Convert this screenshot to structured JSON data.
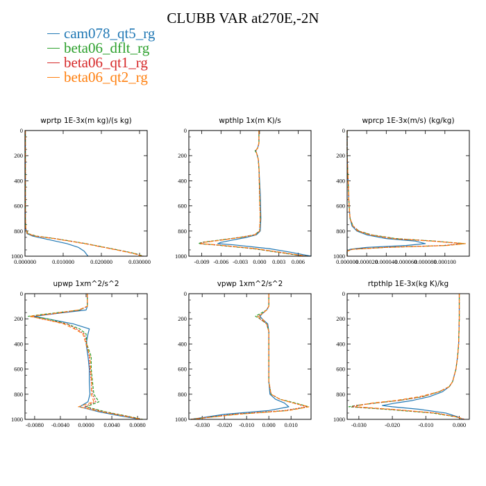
{
  "title": "CLUBB VAR at270E,-2N",
  "legend": [
    {
      "label": "cam078_qt5_rg",
      "color": "#1f77b4"
    },
    {
      "label": "beta06_dflt_rg",
      "color": "#2ca02c"
    },
    {
      "label": "beta06_qt1_rg",
      "color": "#d62728"
    },
    {
      "label": "beta06_qt2_rg",
      "color": "#ff7f0e"
    }
  ],
  "chart_data": [
    {
      "type": "line",
      "title": "wprtp  1E-3x(m kg)/(s kg)",
      "xlim": [
        0.0,
        0.032
      ],
      "ylim": [
        1000,
        0
      ],
      "xticks": [
        0.0,
        0.01,
        0.02,
        0.03
      ],
      "xtick_labels": [
        "0.000000",
        "0.010000",
        "0.020000",
        "0.030000"
      ],
      "yticks": [
        0,
        200,
        400,
        600,
        800,
        1000
      ],
      "y": [
        0,
        100,
        200,
        300,
        400,
        500,
        600,
        700,
        780,
        820,
        840,
        860,
        880,
        900,
        930,
        960,
        980,
        1000
      ],
      "series": [
        {
          "name": "cam078_qt5_rg",
          "values": [
            0.0001,
            0.0001,
            0.0001,
            0.0001,
            0.0001,
            0.0001,
            0.0001,
            0.0001,
            0.0002,
            0.0005,
            0.002,
            0.005,
            0.008,
            0.011,
            0.014,
            0.0155,
            0.016,
            0.0165
          ]
        },
        {
          "name": "beta06_dflt_rg",
          "values": [
            0.0001,
            0.0001,
            0.0001,
            0.0001,
            0.0001,
            0.0001,
            0.0001,
            0.0001,
            0.0002,
            0.0008,
            0.003,
            0.008,
            0.012,
            0.016,
            0.021,
            0.026,
            0.029,
            0.031
          ]
        },
        {
          "name": "beta06_qt1_rg",
          "values": [
            0.0001,
            0.0001,
            0.0001,
            0.0001,
            0.0001,
            0.0001,
            0.0001,
            0.0001,
            0.0002,
            0.0007,
            0.0028,
            0.0078,
            0.0118,
            0.0158,
            0.0208,
            0.0258,
            0.0288,
            0.0308
          ]
        },
        {
          "name": "beta06_qt2_rg",
          "values": [
            0.0001,
            0.0001,
            0.0001,
            0.0001,
            0.0001,
            0.0001,
            0.0001,
            0.0001,
            0.0002,
            0.0006,
            0.0026,
            0.0076,
            0.0116,
            0.0156,
            0.0206,
            0.0256,
            0.0286,
            0.0306
          ]
        }
      ]
    },
    {
      "type": "line",
      "title": "wpthlp  1x(m K)/s",
      "xlim": [
        -0.011,
        0.008
      ],
      "ylim": [
        1000,
        0
      ],
      "xticks": [
        -0.009,
        -0.006,
        -0.003,
        0.0,
        0.003,
        0.006
      ],
      "xtick_labels": [
        "-0.009",
        "-0.006",
        "-0.003",
        "0.000",
        "0.003",
        "0.006"
      ],
      "yticks": [
        0,
        200,
        400,
        600,
        800,
        1000
      ],
      "y": [
        0,
        100,
        140,
        160,
        190,
        230,
        300,
        500,
        700,
        800,
        830,
        850,
        870,
        890,
        900,
        910,
        940,
        970,
        1000
      ],
      "series": [
        {
          "name": "cam078_qt5_rg",
          "values": [
            -0.0001,
            -0.0001,
            -0.0003,
            -0.0006,
            -0.0004,
            -0.0002,
            -0.0001,
            0.0001,
            0.0002,
            0.0001,
            -0.0005,
            -0.002,
            -0.004,
            -0.006,
            -0.0065,
            -0.004,
            0.0015,
            0.005,
            0.008
          ]
        },
        {
          "name": "beta06_dflt_rg",
          "values": [
            -0.0001,
            -0.0001,
            -0.0003,
            -0.0007,
            -0.0004,
            -0.0002,
            -0.0001,
            0.0,
            0.0001,
            0.0,
            -0.0008,
            -0.003,
            -0.006,
            -0.009,
            -0.0095,
            -0.007,
            -0.001,
            0.003,
            0.007
          ]
        },
        {
          "name": "beta06_qt1_rg",
          "values": [
            -0.0001,
            -0.0001,
            -0.0003,
            -0.0006,
            -0.0004,
            -0.0002,
            -0.0001,
            0.0,
            0.0001,
            0.0,
            -0.0008,
            -0.003,
            -0.0058,
            -0.0088,
            -0.0093,
            -0.0068,
            -0.0008,
            0.0032,
            0.0072
          ]
        },
        {
          "name": "beta06_qt2_rg",
          "values": [
            -0.0001,
            -0.0001,
            -0.0003,
            -0.0006,
            -0.0004,
            -0.0002,
            -0.0001,
            0.0,
            0.0001,
            0.0,
            -0.0007,
            -0.0028,
            -0.0056,
            -0.0086,
            -0.0091,
            -0.0066,
            -0.0006,
            0.0034,
            0.0074
          ]
        }
      ]
    },
    {
      "type": "line",
      "title": "wprcp  1E-3x(m/s) (kg/kg)",
      "xlim": [
        0.0,
        0.000125
      ],
      "ylim": [
        1000,
        0
      ],
      "xticks": [
        0.0,
        2e-05,
        4e-05,
        6e-05,
        8e-05,
        0.0001
      ],
      "xtick_labels": [
        "0.000000",
        "0.000020",
        "0.000040",
        "0.000060",
        "0.000080",
        "0.000100"
      ],
      "yticks": [
        0,
        200,
        400,
        600,
        800,
        1000
      ],
      "y": [
        0,
        200,
        400,
        600,
        700,
        760,
        800,
        830,
        860,
        880,
        900,
        915,
        930,
        945,
        960,
        980,
        1000
      ],
      "series": [
        {
          "name": "cam078_qt5_rg",
          "values": [
            0.0,
            0.0,
            1e-06,
            2e-06,
            3e-06,
            5e-06,
            1e-05,
            2e-05,
            4e-05,
            7e-05,
            8e-05,
            6e-05,
            2e-05,
            3e-06,
            0.0,
            0.0,
            0.0
          ]
        },
        {
          "name": "beta06_dflt_rg",
          "values": [
            0.0,
            0.0,
            1e-06,
            2e-06,
            3e-06,
            6e-06,
            1.2e-05,
            2.5e-05,
            5e-05,
            9e-05,
            0.00012,
            0.0001,
            4e-05,
            5e-06,
            0.0,
            0.0,
            0.0
          ]
        },
        {
          "name": "beta06_qt1_rg",
          "values": [
            0.0,
            0.0,
            1e-06,
            2e-06,
            3e-06,
            6e-06,
            1.2e-05,
            2.4e-05,
            4.8e-05,
            8.8e-05,
            0.000118,
            9.8e-05,
            3.8e-05,
            5e-06,
            0.0,
            0.0,
            0.0
          ]
        },
        {
          "name": "beta06_qt2_rg",
          "values": [
            0.0,
            0.0,
            1e-06,
            2e-06,
            3e-06,
            6e-06,
            1.1e-05,
            2.3e-05,
            4.6e-05,
            8.6e-05,
            0.000121,
            0.000102,
            4e-05,
            6e-06,
            0.0,
            0.0,
            0.0
          ]
        }
      ]
    },
    {
      "type": "line",
      "title": "upwp  1xm^2/s^2",
      "xlim": [
        -0.0095,
        0.0095
      ],
      "ylim": [
        1000,
        0
      ],
      "xticks": [
        -0.008,
        -0.004,
        0.0,
        0.004,
        0.008
      ],
      "xtick_labels": [
        "-0.0080",
        "-0.0040",
        "0.0000",
        "0.0040",
        "0.0080"
      ],
      "yticks": [
        0,
        200,
        400,
        600,
        800,
        1000
      ],
      "y": [
        0,
        100,
        130,
        160,
        180,
        200,
        240,
        280,
        320,
        400,
        500,
        600,
        700,
        800,
        860,
        900,
        940,
        970,
        1000
      ],
      "series": [
        {
          "name": "cam078_qt5_rg",
          "values": [
            0.0002,
            0.0002,
            0.0,
            -0.005,
            -0.008,
            -0.006,
            -0.002,
            0.0005,
            0.0003,
            0.0,
            0.0003,
            0.0005,
            0.0005,
            0.0006,
            0.0003,
            -0.001,
            0.002,
            0.005,
            0.0085
          ]
        },
        {
          "name": "beta06_dflt_rg",
          "values": [
            0.0002,
            0.0002,
            -0.001,
            -0.006,
            -0.009,
            -0.006,
            -0.003,
            -0.001,
            0.0,
            0.0001,
            0.0008,
            0.0008,
            0.001,
            0.0012,
            0.002,
            0.0,
            0.003,
            0.006,
            0.0088
          ]
        },
        {
          "name": "beta06_qt1_rg",
          "values": [
            0.0002,
            0.0002,
            -0.001,
            -0.005,
            -0.0085,
            -0.007,
            -0.003,
            -0.0015,
            -0.0003,
            0.0001,
            0.0005,
            0.0006,
            0.0008,
            0.001,
            0.0015,
            -0.0003,
            0.0027,
            0.0058,
            0.0086
          ]
        },
        {
          "name": "beta06_qt2_rg",
          "values": [
            0.0002,
            0.0002,
            -0.0012,
            -0.0055,
            -0.0088,
            -0.0068,
            -0.0035,
            -0.0018,
            -0.0005,
            0.0,
            0.0006,
            0.0007,
            0.0009,
            0.0008,
            0.0012,
            -0.0012,
            0.0025,
            0.0055,
            0.0087
          ]
        }
      ]
    },
    {
      "type": "line",
      "title": "vpwp  1xm^2/s^2",
      "xlim": [
        -0.036,
        0.019
      ],
      "ylim": [
        1000,
        0
      ],
      "xticks": [
        -0.03,
        -0.02,
        -0.01,
        0.0,
        0.01
      ],
      "xtick_labels": [
        "-0.030",
        "-0.020",
        "-0.010",
        "0.000",
        "0.010"
      ],
      "yticks": [
        0,
        200,
        400,
        600,
        800,
        1000
      ],
      "y": [
        0,
        100,
        130,
        160,
        180,
        200,
        240,
        300,
        500,
        700,
        800,
        840,
        870,
        900,
        930,
        960,
        1000
      ],
      "series": [
        {
          "name": "cam078_qt5_rg",
          "values": [
            0.0,
            0.0,
            -0.001,
            -0.003,
            -0.004,
            -0.003,
            -0.0005,
            0.0,
            0.0,
            0.0,
            0.0005,
            0.003,
            0.007,
            0.009,
            0.0,
            -0.02,
            -0.035
          ]
        },
        {
          "name": "beta06_dflt_rg",
          "values": [
            0.0,
            0.0,
            -0.001,
            -0.004,
            -0.006,
            -0.004,
            -0.001,
            0.0,
            0.0,
            0.0,
            0.001,
            0.005,
            0.012,
            0.018,
            0.008,
            -0.015,
            -0.035
          ]
        },
        {
          "name": "beta06_qt1_rg",
          "values": [
            0.0,
            0.0,
            -0.001,
            -0.003,
            -0.005,
            -0.004,
            -0.001,
            0.0,
            0.0,
            0.0,
            0.001,
            0.005,
            0.011,
            0.017,
            0.007,
            -0.016,
            -0.035
          ]
        },
        {
          "name": "beta06_qt2_rg",
          "values": [
            0.0,
            0.0,
            -0.001,
            -0.003,
            -0.005,
            -0.003,
            -0.001,
            0.0,
            0.0,
            0.0,
            0.001,
            0.005,
            0.011,
            0.018,
            0.009,
            -0.014,
            -0.035
          ]
        }
      ]
    },
    {
      "type": "line",
      "title": "rtpthlp  1E-3x(kg K)/kg",
      "xlim": [
        -0.0335,
        0.003
      ],
      "ylim": [
        1000,
        0
      ],
      "xticks": [
        -0.03,
        -0.02,
        -0.01,
        0.0
      ],
      "xtick_labels": [
        "-0.030",
        "-0.020",
        "-0.010",
        "0.000"
      ],
      "yticks": [
        0,
        200,
        400,
        600,
        800,
        1000
      ],
      "y": [
        0,
        200,
        400,
        500,
        600,
        650,
        700,
        740,
        780,
        820,
        850,
        870,
        890,
        900,
        920,
        950,
        980,
        1000
      ],
      "series": [
        {
          "name": "cam078_qt5_rg",
          "values": [
            0.0,
            0.0,
            -0.0002,
            -0.0005,
            -0.001,
            -0.0015,
            -0.002,
            -0.003,
            -0.005,
            -0.009,
            -0.014,
            -0.019,
            -0.023,
            -0.02,
            -0.012,
            -0.004,
            -0.0005,
            0.001
          ]
        },
        {
          "name": "beta06_dflt_rg",
          "values": [
            0.0,
            0.0,
            -0.0002,
            -0.0005,
            -0.001,
            -0.0015,
            -0.002,
            -0.003,
            -0.006,
            -0.011,
            -0.018,
            -0.025,
            -0.031,
            -0.033,
            -0.022,
            -0.008,
            -0.001,
            0.0015
          ]
        },
        {
          "name": "beta06_qt1_rg",
          "values": [
            0.0,
            0.0,
            -0.0002,
            -0.0005,
            -0.001,
            -0.0015,
            -0.002,
            -0.003,
            -0.006,
            -0.011,
            -0.018,
            -0.025,
            -0.031,
            -0.032,
            -0.021,
            -0.007,
            -0.0008,
            0.0015
          ]
        },
        {
          "name": "beta06_qt2_rg",
          "values": [
            0.0,
            0.0,
            -0.0002,
            -0.0005,
            -0.001,
            -0.0015,
            -0.002,
            -0.003,
            -0.006,
            -0.012,
            -0.019,
            -0.026,
            -0.03,
            -0.031,
            -0.02,
            -0.007,
            -0.0008,
            0.0015
          ]
        }
      ]
    }
  ]
}
